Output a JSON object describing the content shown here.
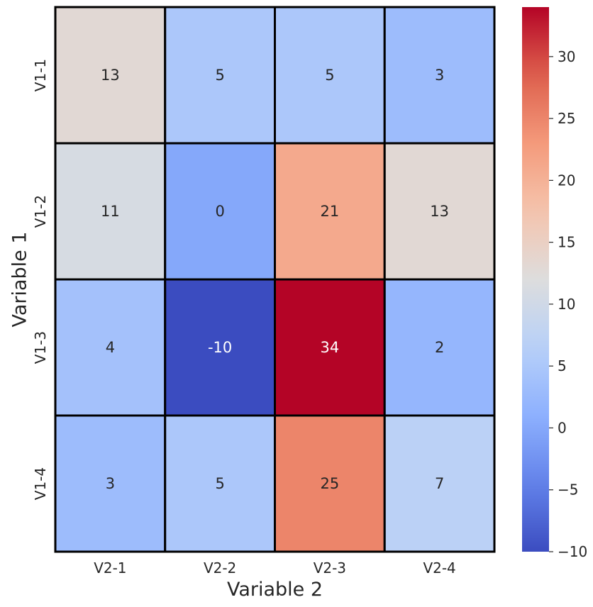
{
  "chart_data": {
    "type": "heatmap",
    "title": "",
    "xlabel": "Variable 2",
    "ylabel": "Variable 1",
    "x_categories": [
      "V2-1",
      "V2-2",
      "V2-3",
      "V2-4"
    ],
    "y_categories": [
      "V1-1",
      "V1-2",
      "V1-3",
      "V1-4"
    ],
    "values": [
      [
        13,
        5,
        5,
        3
      ],
      [
        11,
        0,
        21,
        13
      ],
      [
        4,
        -10,
        34,
        2
      ],
      [
        3,
        5,
        25,
        7
      ]
    ],
    "annotated": true,
    "colormap": "coolwarm",
    "vmin": -10,
    "vmax": 34,
    "colorbar": {
      "ticks": [
        -10,
        -5,
        0,
        5,
        10,
        15,
        20,
        25,
        30
      ],
      "tick_labels": [
        "−10",
        "−5",
        "0",
        "5",
        "10",
        "15",
        "20",
        "25",
        "30"
      ]
    },
    "cell_border_color": "#000000",
    "grid": false
  }
}
